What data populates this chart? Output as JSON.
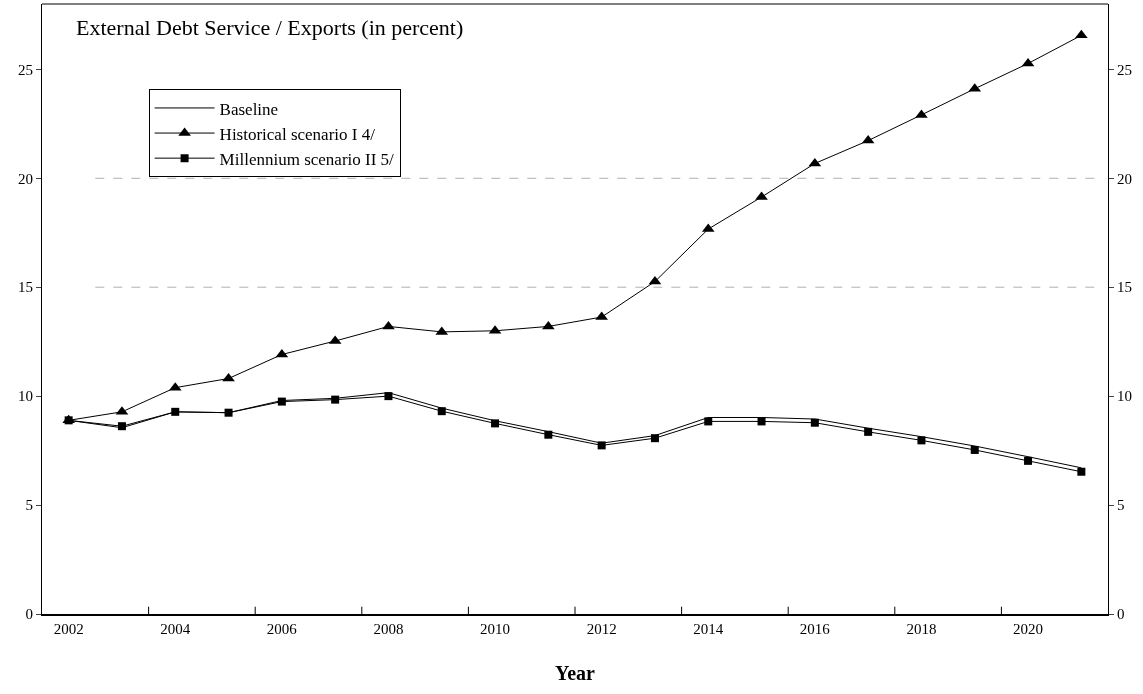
{
  "chart_data": {
    "type": "line",
    "title": "External Debt Service / Exports (in percent)",
    "xlabel": "Year",
    "categories": [
      "2002",
      null,
      "2004",
      null,
      "2006",
      null,
      "2008",
      null,
      "2010",
      null,
      "2012",
      null,
      "2014",
      null,
      "2016",
      null,
      "2018",
      null,
      "2020",
      null
    ],
    "series": [
      {
        "name": "Baseline",
        "color": "#000000",
        "marker": "none",
        "values": [
          8.89,
          8.55,
          9.28,
          9.24,
          9.8,
          9.9,
          10.16,
          9.45,
          8.87,
          8.37,
          7.84,
          8.19,
          9.02,
          9.02,
          8.95,
          8.53,
          8.14,
          7.71,
          7.22,
          6.71
        ]
      },
      {
        "name": "Historical scenario I 4/",
        "color": "#000000",
        "marker": "triangle",
        "values": [
          8.89,
          9.28,
          10.39,
          10.81,
          11.91,
          12.53,
          13.2,
          12.95,
          13.0,
          13.2,
          13.63,
          15.26,
          17.67,
          19.14,
          20.68,
          21.73,
          22.91,
          24.11,
          25.27,
          26.56
        ]
      },
      {
        "name": "Millennium scenario II 5/",
        "color": "#000000",
        "marker": "square",
        "values": [
          8.89,
          8.62,
          9.28,
          9.24,
          9.75,
          9.84,
          10.0,
          9.31,
          8.75,
          8.23,
          7.74,
          8.07,
          8.84,
          8.84,
          8.78,
          8.36,
          7.97,
          7.53,
          7.03,
          6.53
        ]
      }
    ],
    "ylim": [
      0,
      28
    ],
    "yticks": [
      0,
      5,
      10,
      15,
      20,
      25
    ],
    "y2lim": [
      0,
      28
    ],
    "y2ticks": [
      0,
      5,
      10,
      15,
      20,
      25
    ],
    "ref_lines": [
      {
        "axis": "y",
        "value": 15,
        "color": "#b0b0b0",
        "line_style": "dashed"
      },
      {
        "axis": "y",
        "value": 20,
        "color": "#b0b0b0",
        "line_style": "dashed"
      }
    ],
    "grid": false,
    "legend": "top left",
    "line_style": "solid"
  }
}
